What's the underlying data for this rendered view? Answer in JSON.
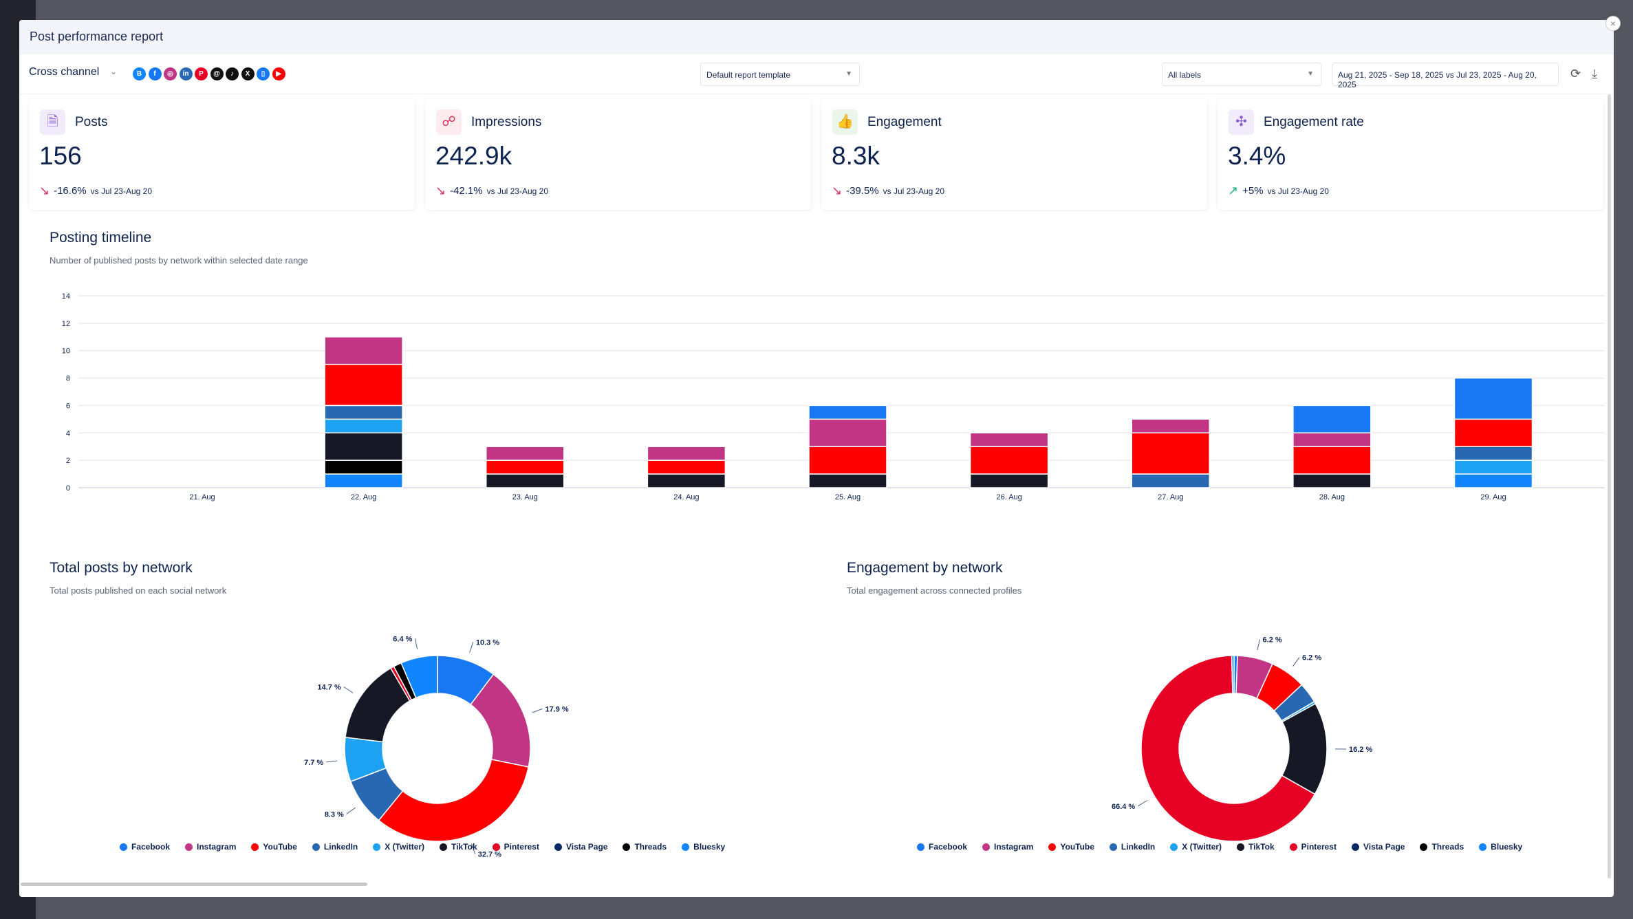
{
  "window": {
    "title": "Post performance report",
    "close_icon": "close-icon"
  },
  "toolbar": {
    "channel": "Cross channel",
    "networks": [
      {
        "name": "bluesky",
        "color": "#1185fe",
        "glyph": "B"
      },
      {
        "name": "facebook",
        "color": "#1877f2",
        "glyph": "f"
      },
      {
        "name": "instagram",
        "color": "#c13584",
        "glyph": "◎"
      },
      {
        "name": "linkedin",
        "color": "#2867b2",
        "glyph": "in"
      },
      {
        "name": "pinterest",
        "color": "#e60023",
        "glyph": "P"
      },
      {
        "name": "threads",
        "color": "#111111",
        "glyph": "@"
      },
      {
        "name": "tiktok",
        "color": "#111111",
        "glyph": "♪"
      },
      {
        "name": "x",
        "color": "#111111",
        "glyph": "X"
      },
      {
        "name": "vista-page",
        "color": "#1877f2",
        "glyph": "▯"
      },
      {
        "name": "youtube",
        "color": "#ff0000",
        "glyph": "▶"
      }
    ],
    "template": "Default report template",
    "labels": "All labels",
    "date_range": "Aug 21, 2025 - Sep 18, 2025 vs Jul 23, 2025 - Aug 20, 2025"
  },
  "cards": [
    {
      "label": "Posts",
      "value": "156",
      "delta": "-16.6%",
      "trend": "down",
      "compare": "vs Jul 23-Aug 20",
      "icon": "document-icon",
      "icon_bg": "#f1ebfb",
      "icon_color": "#8a5ad6",
      "glyph": "🗎"
    },
    {
      "label": "Impressions",
      "value": "242.9k",
      "delta": "-42.1%",
      "trend": "down",
      "compare": "vs Jul 23-Aug 20",
      "icon": "nodes-icon",
      "icon_bg": "#fdecef",
      "icon_color": "#e0325a",
      "glyph": "☍"
    },
    {
      "label": "Engagement",
      "value": "8.3k",
      "delta": "-39.5%",
      "trend": "down",
      "compare": "vs Jul 23-Aug 20",
      "icon": "thumbs-up-icon",
      "icon_bg": "#eaf6ea",
      "icon_color": "#34a853",
      "glyph": "👍"
    },
    {
      "label": "Engagement rate",
      "value": "3.4%",
      "delta": "+5%",
      "trend": "up",
      "compare": "vs Jul 23-Aug 20",
      "icon": "network-icon",
      "icon_bg": "#f1ebfb",
      "icon_color": "#8a5ad6",
      "glyph": "✣"
    }
  ],
  "trend_colors": {
    "down": "#e0325a",
    "up": "#1db57a"
  },
  "timeline": {
    "title": "Posting timeline",
    "subtitle": "Number of published posts by network within selected date range"
  },
  "posts_by_network": {
    "title": "Total posts by network",
    "subtitle": "Total posts published on each social network"
  },
  "engagement_by_network": {
    "title": "Engagement by network",
    "subtitle": "Total engagement across connected profiles"
  },
  "networks": [
    {
      "name": "Facebook",
      "color": "#1877f2"
    },
    {
      "name": "Instagram",
      "color": "#c13584"
    },
    {
      "name": "YouTube",
      "color": "#ff0000"
    },
    {
      "name": "LinkedIn",
      "color": "#2867b2"
    },
    {
      "name": "X (Twitter)",
      "color": "#1da1f2"
    },
    {
      "name": "TikTok",
      "color": "#161925"
    },
    {
      "name": "Pinterest",
      "color": "#e60023"
    },
    {
      "name": "Vista Page",
      "color": "#0a2a66"
    },
    {
      "name": "Threads",
      "color": "#000000"
    },
    {
      "name": "Bluesky",
      "color": "#1185fe"
    }
  ],
  "chart_data": [
    {
      "type": "bar",
      "stacked": true,
      "title": "Posting timeline",
      "categories": [
        "21. Aug",
        "22. Aug",
        "23. Aug",
        "24. Aug",
        "25. Aug",
        "26. Aug",
        "27. Aug",
        "28. Aug",
        "29. Aug"
      ],
      "ylim": [
        0,
        14
      ],
      "yticks": [
        0,
        2,
        4,
        6,
        8,
        10,
        12,
        14
      ],
      "grid": true,
      "series": [
        {
          "name": "Facebook",
          "values": [
            0,
            0,
            0,
            0,
            1,
            0,
            0,
            2,
            3
          ]
        },
        {
          "name": "Instagram",
          "values": [
            0,
            2,
            1,
            1,
            2,
            1,
            1,
            1,
            0
          ]
        },
        {
          "name": "YouTube",
          "values": [
            0,
            3,
            1,
            1,
            2,
            2,
            3,
            2,
            2
          ]
        },
        {
          "name": "LinkedIn",
          "values": [
            0,
            1,
            0,
            0,
            0,
            0,
            1,
            0,
            1
          ]
        },
        {
          "name": "X (Twitter)",
          "values": [
            0,
            1,
            0,
            0,
            0,
            0,
            0,
            0,
            1
          ]
        },
        {
          "name": "TikTok",
          "values": [
            0,
            2,
            1,
            1,
            1,
            1,
            0,
            1,
            0
          ]
        },
        {
          "name": "Pinterest",
          "values": [
            0,
            0,
            0,
            0,
            0,
            0,
            0,
            0,
            0
          ]
        },
        {
          "name": "Vista Page",
          "values": [
            0,
            0,
            0,
            0,
            0,
            0,
            0,
            0,
            0
          ]
        },
        {
          "name": "Threads",
          "values": [
            0,
            1,
            0,
            0,
            0,
            0,
            0,
            0,
            0
          ]
        },
        {
          "name": "Bluesky",
          "values": [
            0,
            1,
            0,
            0,
            0,
            0,
            0,
            0,
            1
          ]
        }
      ]
    },
    {
      "type": "pie",
      "donut": true,
      "title": "Total posts by network",
      "legend": "bottom",
      "categories": [
        "Facebook",
        "Instagram",
        "YouTube",
        "LinkedIn",
        "X (Twitter)",
        "TikTok",
        "Pinterest",
        "Vista Page",
        "Threads",
        "Bluesky"
      ],
      "values": [
        10.3,
        17.9,
        32.7,
        8.3,
        7.7,
        14.7,
        0.6,
        0,
        1.4,
        6.4
      ]
    },
    {
      "type": "pie",
      "donut": true,
      "title": "Engagement by network",
      "legend": "bottom",
      "categories": [
        "Facebook",
        "Instagram",
        "YouTube",
        "LinkedIn",
        "X (Twitter)",
        "TikTok",
        "Pinterest",
        "Vista Page",
        "Threads",
        "Bluesky"
      ],
      "values": [
        0.6,
        6.2,
        6.2,
        3.6,
        0.4,
        16.2,
        66.4,
        0,
        0,
        0.4
      ]
    }
  ]
}
